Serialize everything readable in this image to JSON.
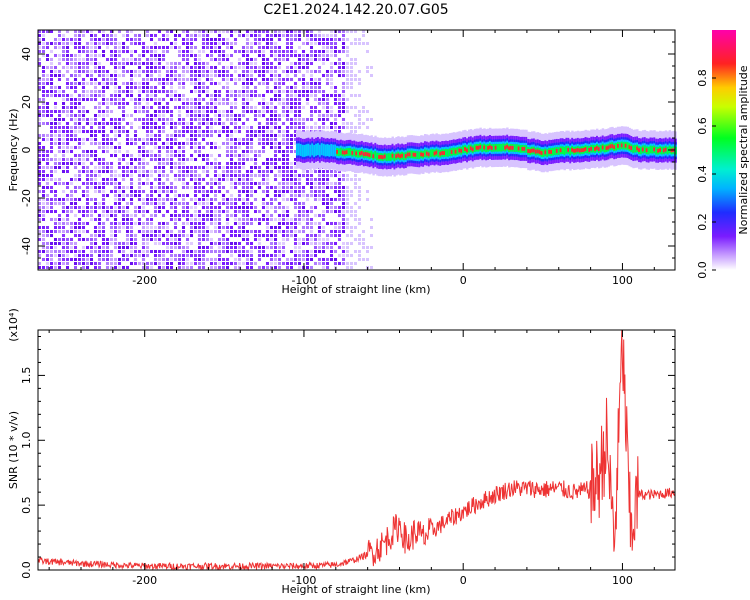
{
  "title": "C2E1.2024.142.20.07.G05",
  "chart_data": [
    {
      "type": "heatmap",
      "xlabel": "Height of straight line (km)",
      "ylabel": "Frequency (Hz)",
      "xlim": [
        -267,
        133
      ],
      "ylim": [
        -50,
        50
      ],
      "x_ticks": [
        -200,
        -100,
        0,
        100
      ],
      "y_ticks": [
        -40,
        -20,
        0,
        20,
        40
      ],
      "colorbar": {
        "label": "Normalized spectral amplitude",
        "range": [
          0,
          1
        ],
        "ticks": [
          0.0,
          0.2,
          0.4,
          0.6,
          0.8
        ],
        "colormap": "purple-blue-cyan-green-yellow-red-magenta"
      },
      "signal_line": {
        "description_points_x": [
          -105,
          -90,
          -70,
          -50,
          -30,
          -10,
          10,
          30,
          50,
          70,
          90,
          100,
          110,
          133
        ],
        "frequency_hz": [
          0,
          0,
          -1,
          -3,
          -2,
          -1,
          1,
          1,
          -1,
          0,
          1,
          2,
          0,
          0
        ]
      },
      "noise_region_x": [
        -267,
        -75
      ]
    },
    {
      "type": "line",
      "xlabel": "Height of straight line (km)",
      "ylabel": "SNR (10 * v/v)",
      "y_multiplier": "(x10⁴)",
      "xlim": [
        -267,
        133
      ],
      "ylim": [
        0,
        1.85
      ],
      "x_ticks": [
        -200,
        -100,
        0,
        100
      ],
      "y_ticks": [
        0.0,
        0.5,
        1.0,
        1.5
      ],
      "color": "#ee3333",
      "series": [
        {
          "x": [
            -267,
            -240,
            -200,
            -160,
            -120,
            -100,
            -80,
            -70,
            -60,
            -50,
            -45,
            -40,
            -35,
            -30,
            -25,
            -20,
            -10,
            0,
            10,
            20,
            30,
            40,
            50,
            60,
            70,
            80,
            85,
            90,
            95,
            100,
            105,
            110,
            120,
            133
          ],
          "y": [
            0.07,
            0.05,
            0.03,
            0.03,
            0.03,
            0.03,
            0.04,
            0.07,
            0.12,
            0.2,
            0.28,
            0.35,
            0.2,
            0.3,
            0.25,
            0.3,
            0.38,
            0.45,
            0.52,
            0.58,
            0.63,
            0.63,
            0.62,
            0.63,
            0.6,
            0.62,
            0.7,
            1.0,
            0.2,
            1.75,
            0.3,
            0.58,
            0.58,
            0.6
          ]
        }
      ]
    }
  ]
}
